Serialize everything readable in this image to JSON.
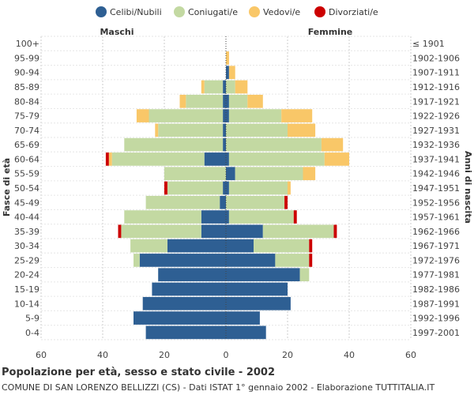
{
  "chart_data": {
    "type": "bar",
    "subtype": "population-pyramid",
    "title": "Popolazione per età, sesso e stato civile - 2002",
    "subtitle": "COMUNE DI SAN LORENZO BELLIZZI (CS) - Dati ISTAT 1° gennaio 2002 - Elaborazione TUTTITALIA.IT",
    "left_label": "Maschi",
    "right_label": "Femmine",
    "ylabel_left": "Fasce di età",
    "ylabel_right": "Anni di nascita",
    "xlim": [
      -60,
      60
    ],
    "xticks": [
      60,
      40,
      20,
      0,
      20,
      40,
      60
    ],
    "legend": [
      {
        "name": "Celibi/Nubili",
        "color": "#2e5f93"
      },
      {
        "name": "Coniugati/e",
        "color": "#c3d9a2"
      },
      {
        "name": "Vedovi/e",
        "color": "#f9c768"
      },
      {
        "name": "Divorziati/e",
        "color": "#cc0000"
      }
    ],
    "age_groups": [
      "100+",
      "95-99",
      "90-94",
      "85-89",
      "80-84",
      "75-79",
      "70-74",
      "65-69",
      "60-64",
      "55-59",
      "50-54",
      "45-49",
      "40-44",
      "35-39",
      "30-34",
      "25-29",
      "20-24",
      "15-19",
      "10-14",
      "5-9",
      "0-4"
    ],
    "birth_years": [
      "≤ 1901",
      "1902-1906",
      "1907-1911",
      "1912-1916",
      "1917-1921",
      "1922-1926",
      "1927-1931",
      "1932-1936",
      "1937-1941",
      "1942-1946",
      "1947-1951",
      "1952-1956",
      "1957-1961",
      "1962-1966",
      "1967-1971",
      "1972-1976",
      "1977-1981",
      "1982-1986",
      "1987-1991",
      "1992-1996",
      "1997-2001"
    ],
    "males": {
      "celibi": [
        0,
        0,
        0,
        1,
        1,
        1,
        1,
        1,
        7,
        0,
        1,
        2,
        8,
        8,
        19,
        28,
        22,
        24,
        27,
        30,
        26
      ],
      "coniugati": [
        0,
        0,
        0,
        6,
        12,
        24,
        21,
        32,
        30,
        20,
        18,
        24,
        25,
        26,
        12,
        2,
        0,
        0,
        0,
        0,
        0
      ],
      "vedovi": [
        0,
        0,
        0,
        1,
        2,
        4,
        1,
        0,
        1,
        0,
        0,
        0,
        0,
        0,
        0,
        0,
        0,
        0,
        0,
        0,
        0
      ],
      "divorziati": [
        0,
        0,
        0,
        0,
        0,
        0,
        0,
        0,
        1,
        0,
        1,
        0,
        0,
        1,
        0,
        0,
        0,
        0,
        0,
        0,
        0
      ]
    },
    "females": {
      "nubili": [
        0,
        0,
        1,
        0,
        1,
        1,
        0,
        0,
        1,
        3,
        1,
        0,
        1,
        12,
        9,
        16,
        24,
        20,
        21,
        11,
        13
      ],
      "coniugate": [
        0,
        0,
        0,
        3,
        6,
        17,
        20,
        31,
        31,
        22,
        19,
        19,
        21,
        23,
        18,
        11,
        3,
        0,
        0,
        0,
        0
      ],
      "vedove": [
        0,
        1,
        2,
        4,
        5,
        10,
        9,
        7,
        8,
        4,
        1,
        0,
        0,
        0,
        0,
        0,
        0,
        0,
        0,
        0,
        0
      ],
      "divorziate": [
        0,
        0,
        0,
        0,
        0,
        0,
        0,
        0,
        0,
        0,
        0,
        1,
        1,
        1,
        1,
        1,
        0,
        0,
        0,
        0,
        0
      ]
    }
  }
}
